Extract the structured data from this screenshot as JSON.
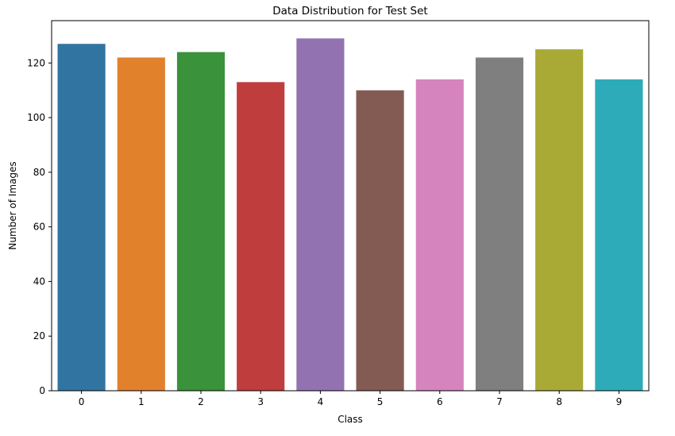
{
  "chart_data": {
    "type": "bar",
    "title": "Data Distribution for Test Set",
    "xlabel": "Class",
    "ylabel": "Number of Images",
    "categories": [
      "0",
      "1",
      "2",
      "3",
      "4",
      "5",
      "6",
      "7",
      "8",
      "9"
    ],
    "values": [
      127,
      122,
      124,
      113,
      129,
      110,
      114,
      122,
      125,
      114
    ],
    "colors": [
      "#3274a1",
      "#e1812c",
      "#3a923a",
      "#c03d3e",
      "#9372b2",
      "#845b53",
      "#d684bd",
      "#7f7f7f",
      "#a9aa35",
      "#2eabb8"
    ],
    "yticks": [
      0,
      20,
      40,
      60,
      80,
      100,
      120
    ],
    "ylim": [
      0,
      135.5
    ],
    "grid": false,
    "legend": "none"
  }
}
